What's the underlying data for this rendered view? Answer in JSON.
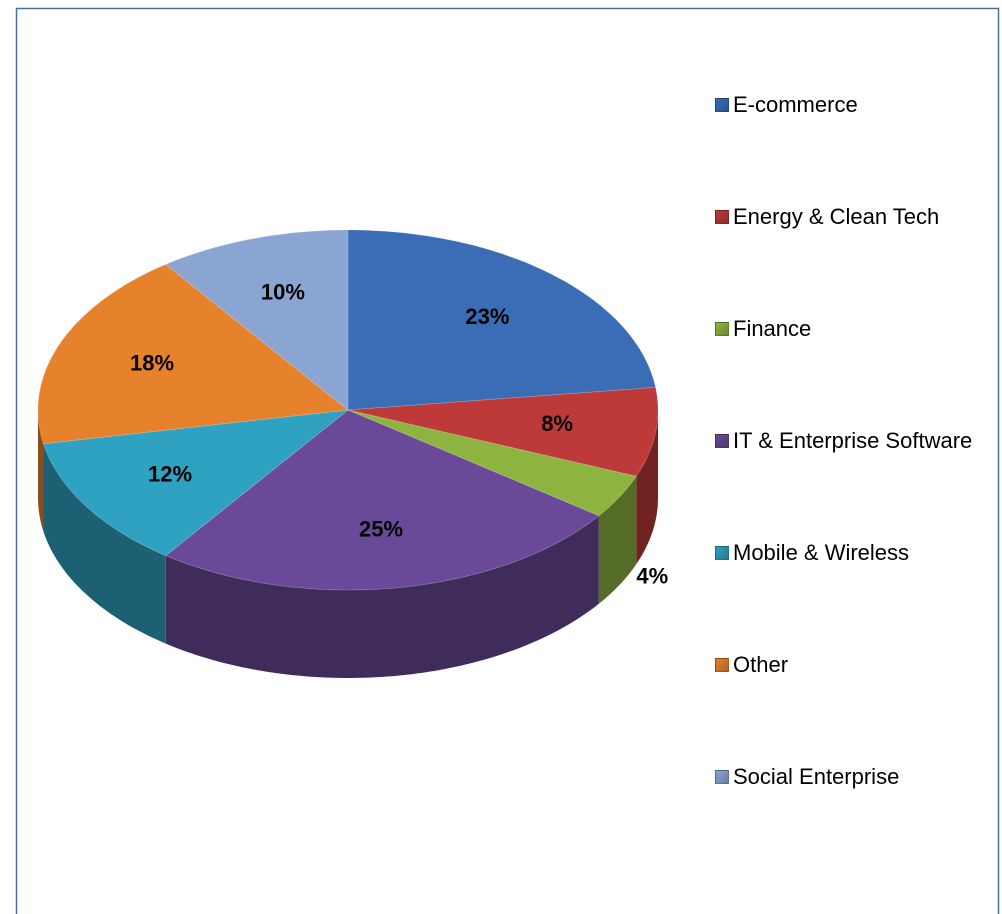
{
  "chart_data": {
    "type": "pie",
    "categories": [
      "E-commerce",
      "Energy & Clean Tech",
      "Finance",
      "IT & Enterprise Software",
      "Mobile & Wireless",
      "Other",
      "Social Enterprise"
    ],
    "values": [
      23,
      8,
      4,
      25,
      12,
      18,
      10
    ],
    "value_labels": [
      "23%",
      "8%",
      "4%",
      "25%",
      "12%",
      "18%",
      "10%"
    ],
    "colors": [
      "#3a6db5",
      "#bd3a38",
      "#8cb43e",
      "#6a4a98",
      "#2ea2c0",
      "#e6822c",
      "#8ba5d3"
    ],
    "legend": "right"
  }
}
